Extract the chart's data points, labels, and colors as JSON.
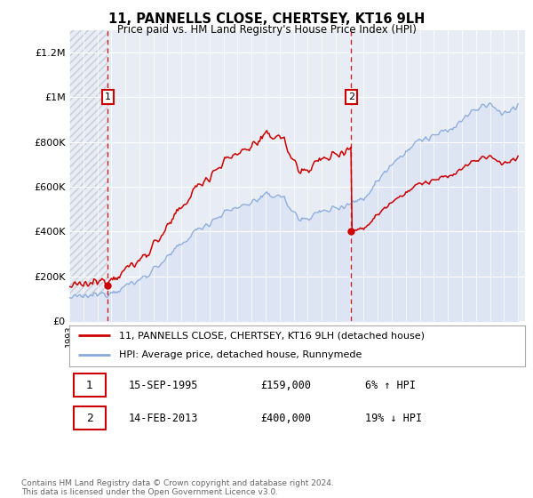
{
  "title": "11, PANNELLS CLOSE, CHERTSEY, KT16 9LH",
  "subtitle": "Price paid vs. HM Land Registry's House Price Index (HPI)",
  "property_label": "11, PANNELLS CLOSE, CHERTSEY, KT16 9LH (detached house)",
  "hpi_label": "HPI: Average price, detached house, Runnymede",
  "transaction1_date": "15-SEP-1995",
  "transaction1_price": 159000,
  "transaction1_hpi": "6% ↑ HPI",
  "transaction2_date": "14-FEB-2013",
  "transaction2_price": 400000,
  "transaction2_hpi": "19% ↓ HPI",
  "footer": "Contains HM Land Registry data © Crown copyright and database right 2024.\nThis data is licensed under the Open Government Licence v3.0.",
  "property_color": "#cc0000",
  "hpi_color": "#88aadd",
  "plot_bg_color": "#e8ecf4",
  "hatch_color": "#c8ccd8",
  "ylim": [
    0,
    1300000
  ],
  "yticks": [
    0,
    200000,
    400000,
    600000,
    800000,
    1000000,
    1200000
  ],
  "ytick_labels": [
    "£0",
    "£200K",
    "£400K",
    "£600K",
    "£800K",
    "£1M",
    "£1.2M"
  ],
  "year_start": 1993,
  "year_end": 2025,
  "t1_year": 1995.75,
  "t2_year": 2013.1
}
